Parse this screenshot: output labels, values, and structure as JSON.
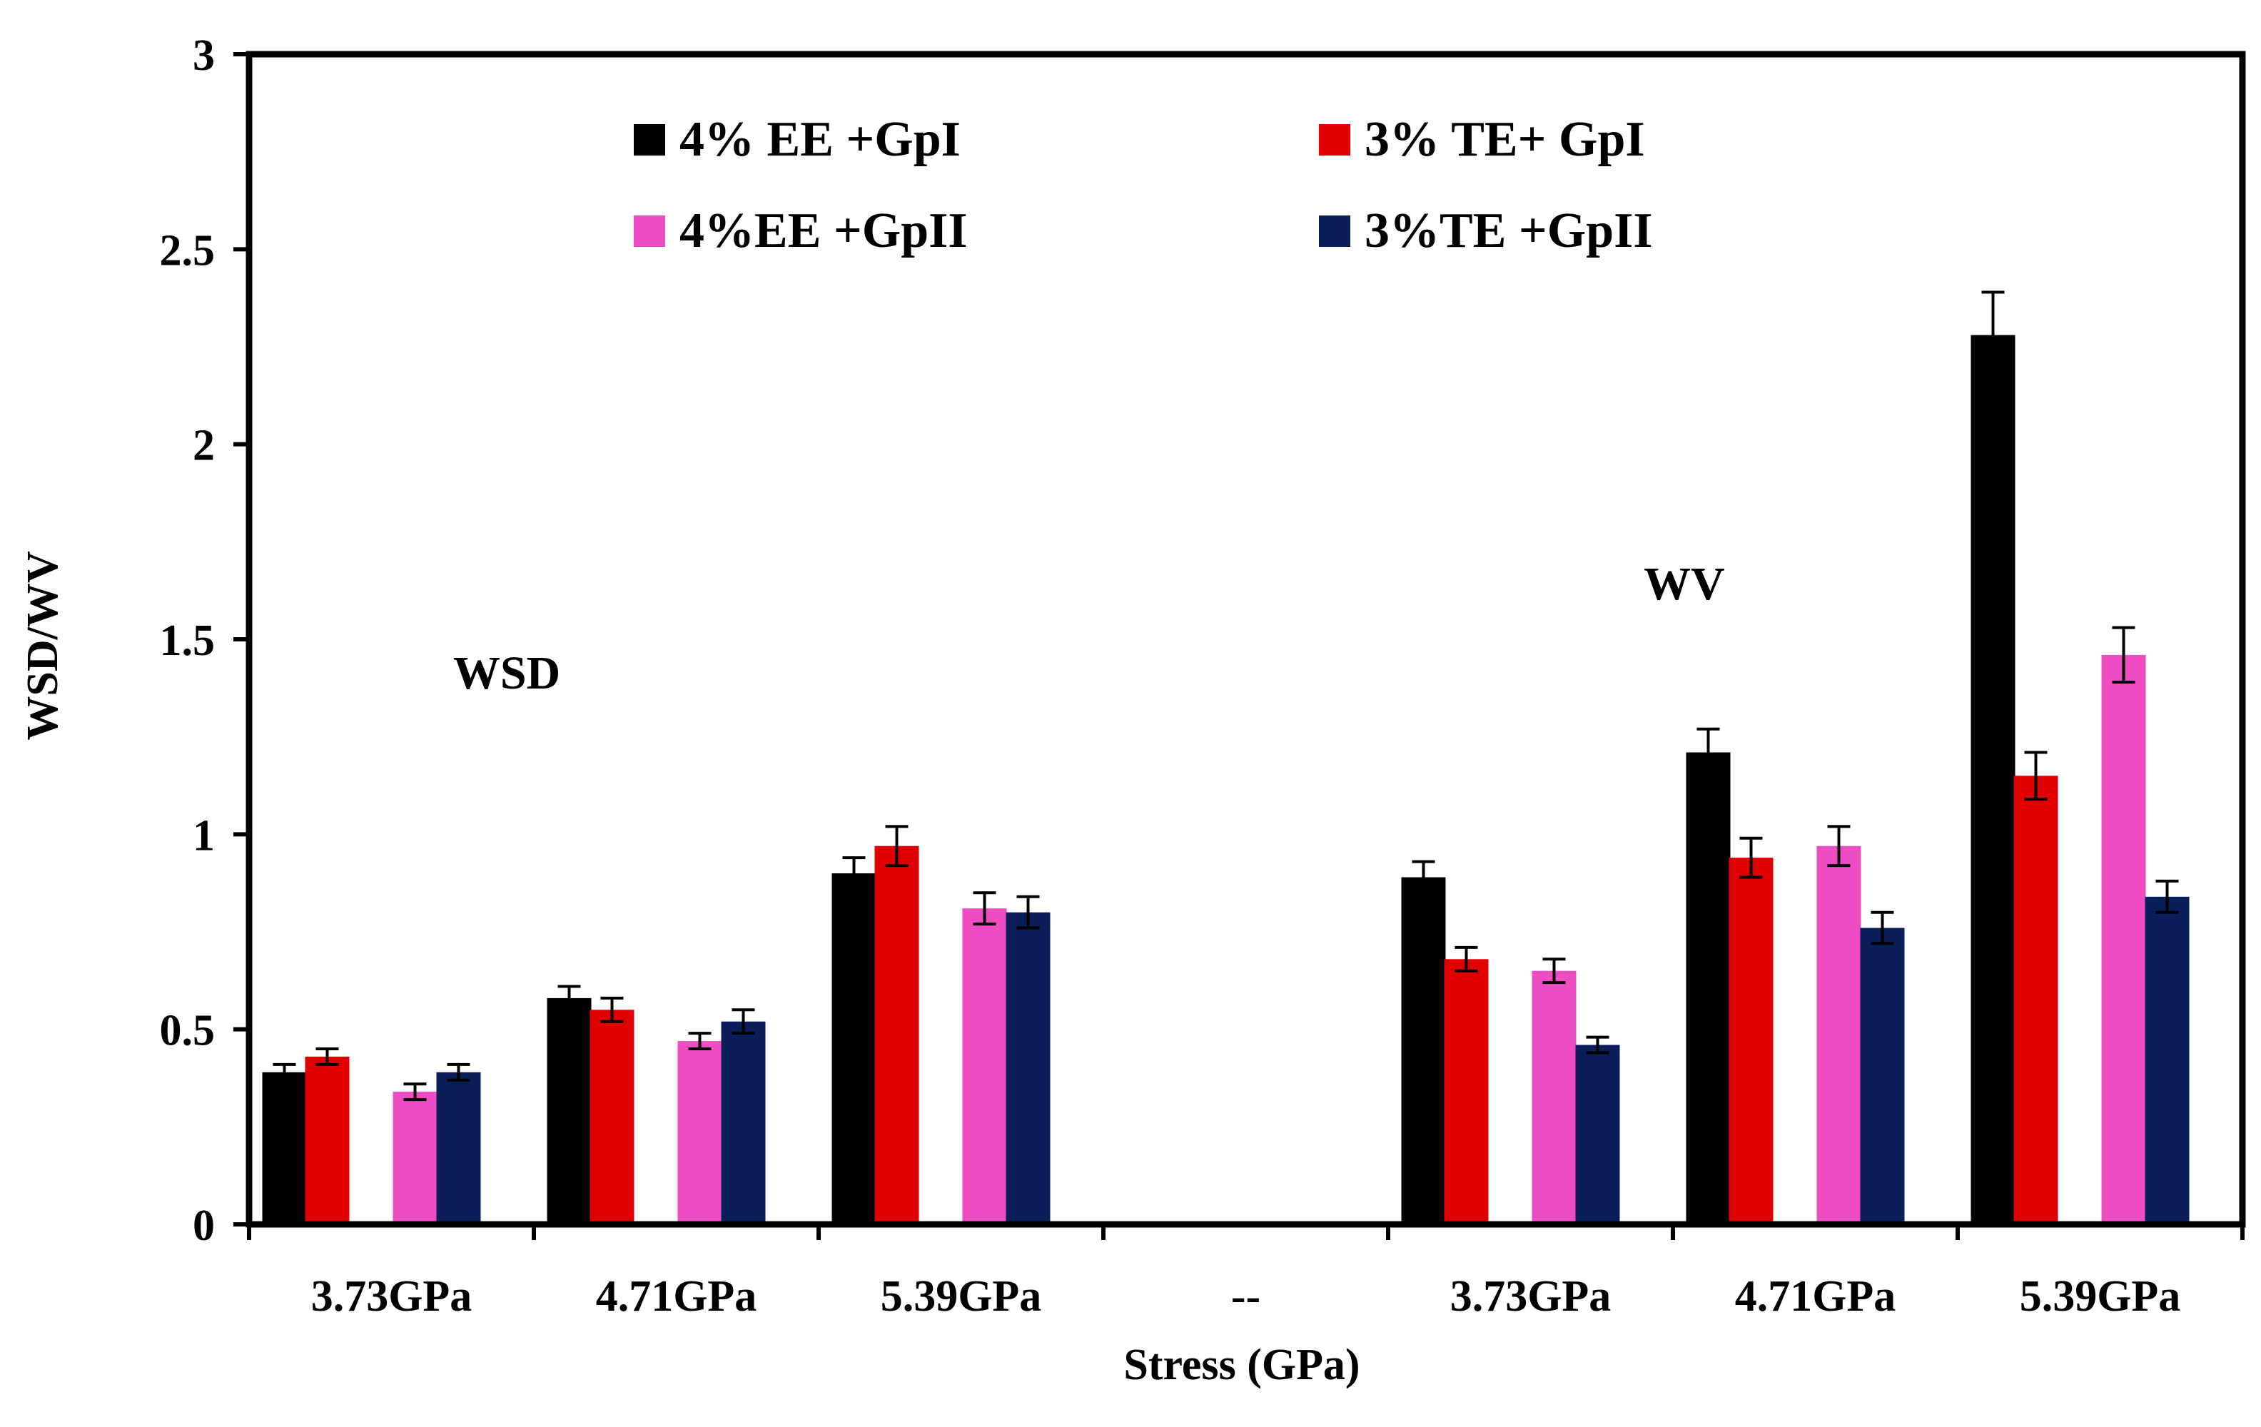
{
  "chart_data": {
    "type": "bar",
    "xlabel": "Stress (GPa)",
    "ylabel": "WSD/WV",
    "ylim": [
      0,
      3
    ],
    "yticks": [
      0,
      0.5,
      1,
      1.5,
      2,
      2.5,
      3
    ],
    "ytick_labels": [
      "0",
      "0.5",
      "1",
      "1.5",
      "2",
      "2.5",
      "3"
    ],
    "categories": [
      "3.73GPa",
      "4.71GPa",
      "5.39GPa",
      "--",
      "3.73GPa",
      "4.71GPa",
      "5.39GPa"
    ],
    "group_labels": [
      "WSD",
      "WV"
    ],
    "legend_placement": "top-center",
    "series": [
      {
        "name": "4% EE +GpI",
        "color": "#000000",
        "values": [
          0.39,
          0.58,
          0.9,
          null,
          0.89,
          1.21,
          2.28
        ],
        "errors": [
          0.02,
          0.03,
          0.04,
          null,
          0.04,
          0.06,
          0.11
        ]
      },
      {
        "name": "3% TE+ GpI",
        "color": "#e00000",
        "values": [
          0.43,
          0.55,
          0.97,
          null,
          0.68,
          0.94,
          1.15
        ],
        "errors": [
          0.02,
          0.03,
          0.05,
          null,
          0.03,
          0.05,
          0.06
        ]
      },
      {
        "name": "4%EE +GpII",
        "color": "#ee4cc2",
        "values": [
          0.34,
          0.47,
          0.81,
          null,
          0.65,
          0.97,
          1.46
        ],
        "errors": [
          0.02,
          0.02,
          0.04,
          null,
          0.03,
          0.05,
          0.07
        ]
      },
      {
        "name": "3%TE +GpII",
        "color": "#0a1e5a",
        "values": [
          0.39,
          0.52,
          0.8,
          null,
          0.46,
          0.76,
          0.84
        ],
        "errors": [
          0.02,
          0.03,
          0.04,
          null,
          0.02,
          0.04,
          0.04
        ]
      }
    ]
  }
}
